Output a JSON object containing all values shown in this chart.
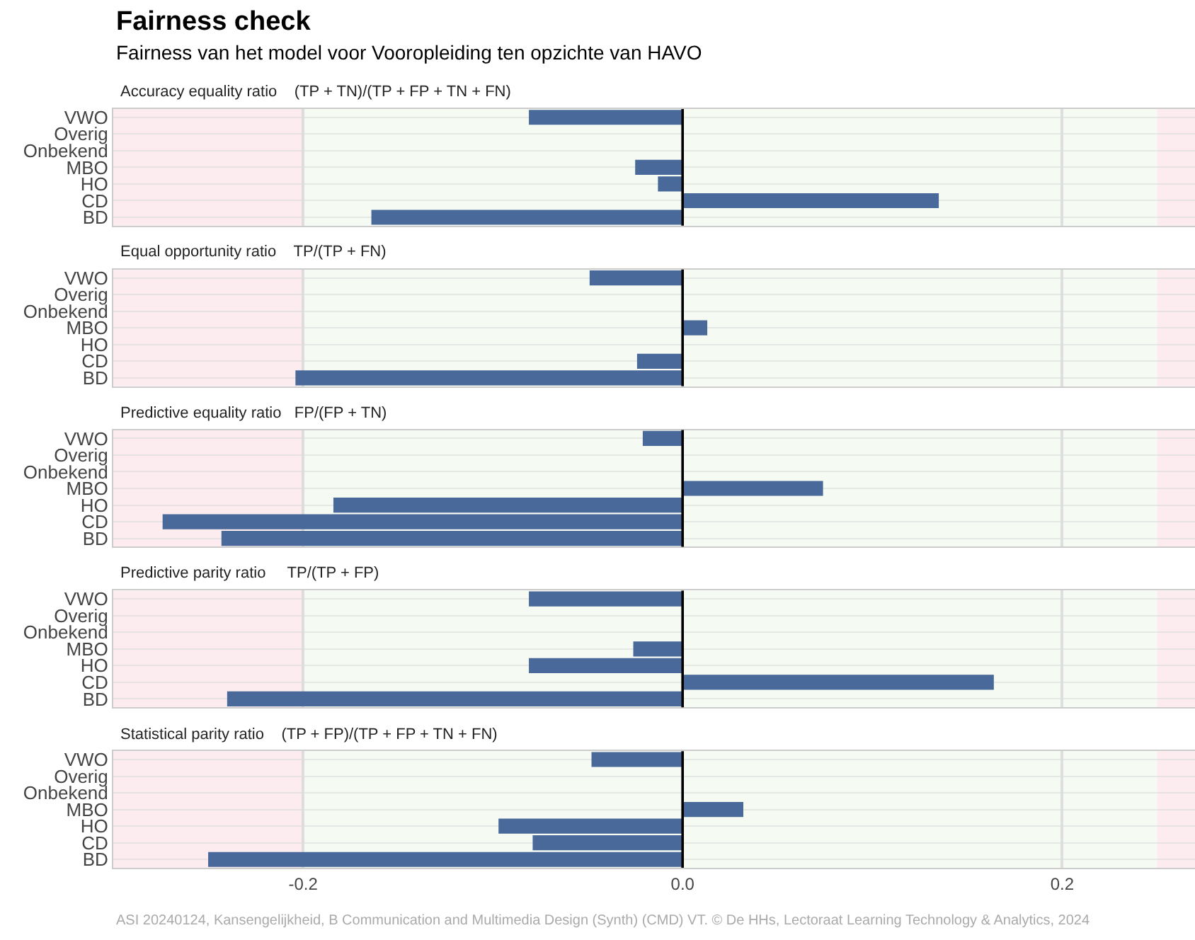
{
  "chart_data": [
    {
      "type": "bar",
      "orientation": "horizontal",
      "title": "Fairness check",
      "subtitle": "Fairness van het model voor Vooropleiding ten opzichte van HAVO",
      "annotations": [
        "Accuracy equality ratio    (TP + TN)/(TP + FP + TN + FN)"
      ],
      "categories": [
        "VWO",
        "Overig",
        "Onbekend",
        "MBO",
        "HO",
        "CD",
        "BD"
      ],
      "values": [
        -0.081,
        null,
        null,
        -0.025,
        -0.013,
        0.135,
        -0.164
      ],
      "color": "#48699a",
      "xlim": [
        -0.3,
        0.27
      ],
      "xticks": [
        -0.2,
        0,
        0.2
      ],
      "grid": true,
      "tick_labels": "y",
      "ref_lines": [
        {
          "axis": "x",
          "value": 0,
          "color": "#000000"
        }
      ],
      "bands": [
        {
          "axis": "x",
          "from": -0.3,
          "to": -0.2,
          "color": "#fdecef"
        },
        {
          "axis": "x",
          "from": -0.2,
          "to": 0.25,
          "color": "#f5fbf3"
        },
        {
          "axis": "x",
          "from": 0.25,
          "to": 0.27,
          "color": "#fdecef"
        }
      ]
    },
    {
      "type": "bar",
      "orientation": "horizontal",
      "annotations": [
        "Equal opportunity ratio    TP/(TP + FN)"
      ],
      "categories": [
        "VWO",
        "Overig",
        "Onbekend",
        "MBO",
        "HO",
        "CD",
        "BD"
      ],
      "values": [
        -0.049,
        null,
        null,
        0.013,
        null,
        -0.024,
        -0.204
      ],
      "color": "#48699a",
      "xlim": [
        -0.3,
        0.27
      ],
      "xticks": [
        -0.2,
        0,
        0.2
      ],
      "grid": true,
      "tick_labels": "y",
      "ref_lines": [
        {
          "axis": "x",
          "value": 0,
          "color": "#000000"
        }
      ],
      "bands": [
        {
          "axis": "x",
          "from": -0.3,
          "to": -0.2,
          "color": "#fdecef"
        },
        {
          "axis": "x",
          "from": -0.2,
          "to": 0.25,
          "color": "#f5fbf3"
        },
        {
          "axis": "x",
          "from": 0.25,
          "to": 0.27,
          "color": "#fdecef"
        }
      ]
    },
    {
      "type": "bar",
      "orientation": "horizontal",
      "annotations": [
        "Predictive equality ratio   FP/(FP + TN)"
      ],
      "categories": [
        "VWO",
        "Overig",
        "Onbekend",
        "MBO",
        "HO",
        "CD",
        "BD"
      ],
      "values": [
        -0.021,
        null,
        null,
        0.074,
        -0.184,
        -0.274,
        -0.243
      ],
      "color": "#48699a",
      "xlim": [
        -0.3,
        0.27
      ],
      "xticks": [
        -0.2,
        0,
        0.2
      ],
      "grid": true,
      "tick_labels": "y",
      "ref_lines": [
        {
          "axis": "x",
          "value": 0,
          "color": "#000000"
        }
      ],
      "bands": [
        {
          "axis": "x",
          "from": -0.3,
          "to": -0.2,
          "color": "#fdecef"
        },
        {
          "axis": "x",
          "from": -0.2,
          "to": 0.25,
          "color": "#f5fbf3"
        },
        {
          "axis": "x",
          "from": 0.25,
          "to": 0.27,
          "color": "#fdecef"
        }
      ]
    },
    {
      "type": "bar",
      "orientation": "horizontal",
      "annotations": [
        "Predictive parity ratio     TP/(TP + FP)"
      ],
      "categories": [
        "VWO",
        "Overig",
        "Onbekend",
        "MBO",
        "HO",
        "CD",
        "BD"
      ],
      "values": [
        -0.081,
        null,
        null,
        -0.026,
        -0.081,
        0.164,
        -0.24
      ],
      "color": "#48699a",
      "xlim": [
        -0.3,
        0.27
      ],
      "xticks": [
        -0.2,
        0,
        0.2
      ],
      "grid": true,
      "tick_labels": "y",
      "ref_lines": [
        {
          "axis": "x",
          "value": 0,
          "color": "#000000"
        }
      ],
      "bands": [
        {
          "axis": "x",
          "from": -0.3,
          "to": -0.2,
          "color": "#fdecef"
        },
        {
          "axis": "x",
          "from": -0.2,
          "to": 0.25,
          "color": "#f5fbf3"
        },
        {
          "axis": "x",
          "from": 0.25,
          "to": 0.27,
          "color": "#fdecef"
        }
      ]
    },
    {
      "type": "bar",
      "orientation": "horizontal",
      "annotations": [
        "Statistical parity ratio    (TP + FP)/(TP + FP + TN + FN)",
        "ASI 20240124, Kansengelijkheid, B Communication and Multimedia Design (Synth) (CMD) VT. © De HHs, Lectoraat Learning Technology & Analytics, 2024"
      ],
      "categories": [
        "VWO",
        "Overig",
        "Onbekend",
        "MBO",
        "HO",
        "CD",
        "BD"
      ],
      "values": [
        -0.048,
        null,
        null,
        0.032,
        -0.097,
        -0.079,
        -0.25
      ],
      "color": "#48699a",
      "xlim": [
        -0.3,
        0.27
      ],
      "xticks": [
        {
          "value": -0.2,
          "label": "-0.2"
        },
        {
          "value": 0,
          "label": "0.0"
        },
        {
          "value": 0.2,
          "label": "0.2"
        }
      ],
      "grid": true,
      "ref_lines": [
        {
          "axis": "x",
          "value": 0,
          "color": "#000000"
        }
      ],
      "bands": [
        {
          "axis": "x",
          "from": -0.3,
          "to": -0.2,
          "color": "#fdecef"
        },
        {
          "axis": "x",
          "from": -0.2,
          "to": 0.25,
          "color": "#f5fbf3"
        },
        {
          "axis": "x",
          "from": 0.25,
          "to": 0.27,
          "color": "#fdecef"
        }
      ]
    }
  ]
}
